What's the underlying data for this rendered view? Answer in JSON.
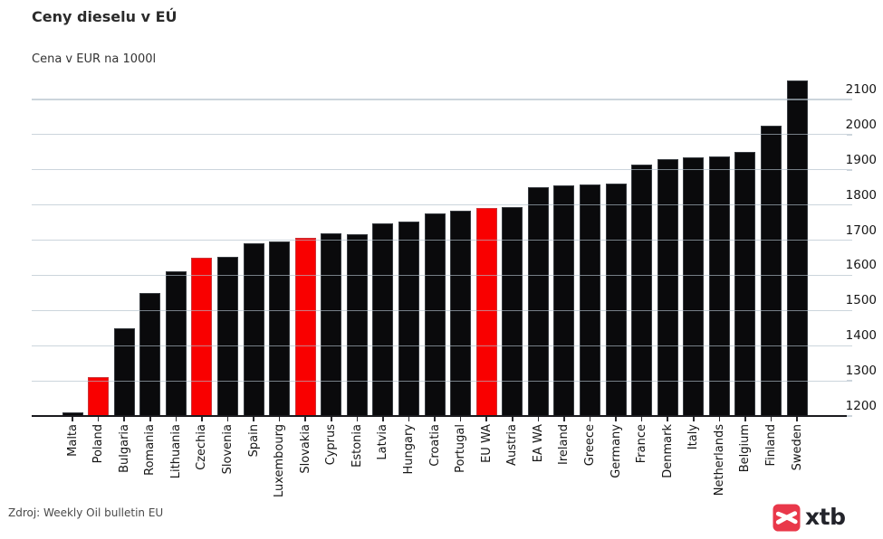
{
  "title": "Ceny dieselu v EÚ",
  "subtitle": "Cena v EUR na 1000l",
  "footer": {
    "source": "Zdroj: Weekly Oil bulletin EU",
    "logo_text": "xtb"
  },
  "colors": {
    "bar": "#0a0a0c",
    "highlight": "#f90000",
    "grid": "rgba(176,190,201,0.65)",
    "axis": "#1a1a1e",
    "tick": "#2a2a2e",
    "logo_red": "#e9384a"
  },
  "chart_data": {
    "type": "bar",
    "title": "Ceny dieselu v EÚ",
    "subtitle": "Cena v EUR na 1000l",
    "xlabel": "",
    "ylabel": "Cena v EUR na 1000l",
    "y_axis_side": "right",
    "grid": true,
    "ylim": [
      1200,
      2160
    ],
    "yticks": [
      1200,
      1300,
      1400,
      1500,
      1600,
      1700,
      1800,
      1900,
      2000,
      2100
    ],
    "categories": [
      "Malta",
      "Poland",
      "Bulgaria",
      "Romania",
      "Lithuania",
      "Czechia",
      "Slovenia",
      "Spain",
      "Luxembourg",
      "Slovakia",
      "Cyprus",
      "Estonia",
      "Latvia",
      "Hungary",
      "Croatia",
      "Portugal",
      "EU WA",
      "Austria",
      "EA WA",
      "Ireland",
      "Greece",
      "Germany",
      "France",
      "Denmark",
      "Italy",
      "Netherlands",
      "Belgium",
      "Finland",
      "Sweden"
    ],
    "values": [
      1210,
      1310,
      1450,
      1550,
      1612,
      1650,
      1653,
      1690,
      1696,
      1707,
      1719,
      1716,
      1747,
      1754,
      1776,
      1785,
      1791,
      1794,
      1851,
      1856,
      1858,
      1862,
      1915,
      1930,
      1935,
      1939,
      1950,
      2025,
      2153
    ],
    "highlighted_categories": [
      "Poland",
      "Czechia",
      "Slovakia",
      "EU WA"
    ],
    "source": "Zdroj: Weekly Oil bulletin EU"
  }
}
